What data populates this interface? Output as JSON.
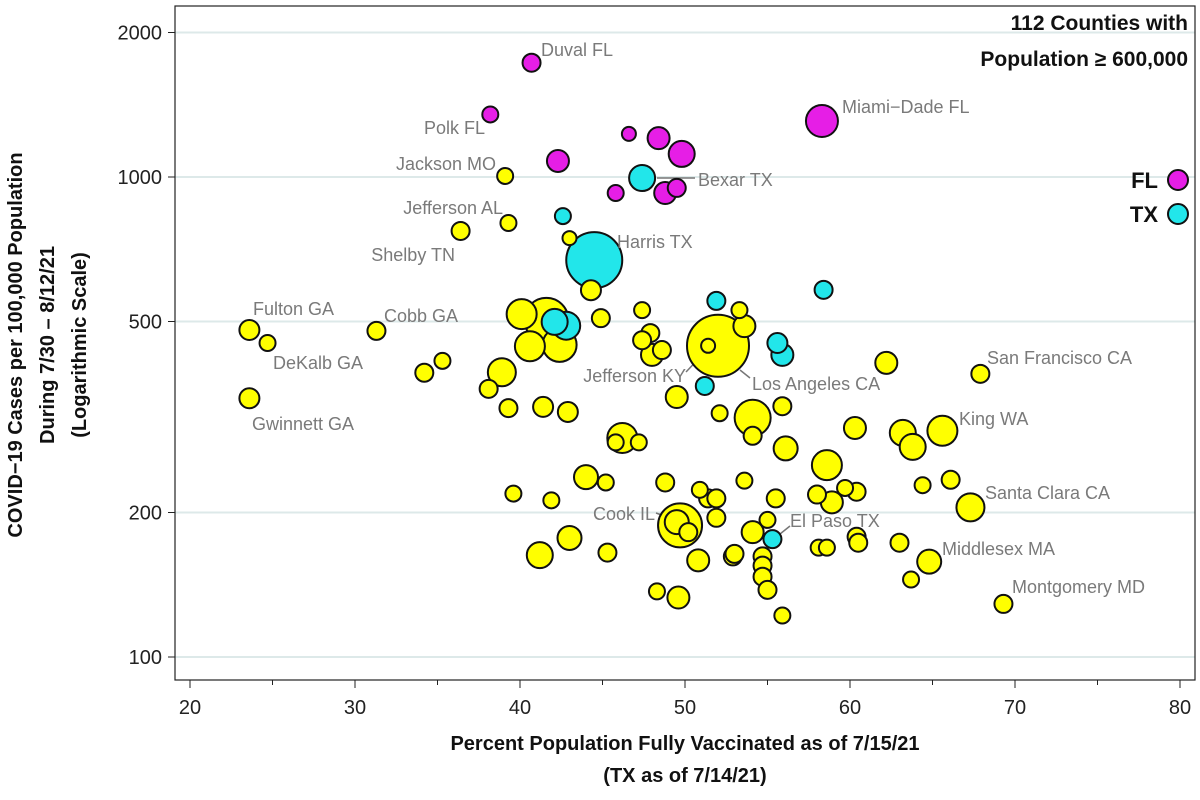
{
  "chart_data": {
    "type": "scatter",
    "title": [
      "112 Counties with",
      "Population ≥ 600,000"
    ],
    "xlabel": [
      "Percent Population Fully Vaccinated as of 7/15/21",
      "(TX as of 7/14/21)"
    ],
    "ylabel": [
      "COVID−19 Cases per 100,000 Population",
      "During 7/30 – 8/12/21",
      "(Logarithmic Scale)"
    ],
    "xlim": [
      20,
      80
    ],
    "ylim": [
      100,
      2000
    ],
    "yscale": "log",
    "xticks": [
      "20",
      "30",
      "40",
      "50",
      "60",
      "70",
      "80"
    ],
    "yticks": [
      "100",
      "200",
      "500",
      "1000",
      "2000"
    ],
    "grid": "horizontal",
    "legend": {
      "placement": "right",
      "entries": [
        {
          "name": "FL",
          "color": "#e61ee6"
        },
        {
          "name": "TX",
          "color": "#22e6ea"
        }
      ]
    },
    "colors": {
      "FL": "#e61ee6",
      "TX": "#22e6ea",
      "other": "#ffff00"
    },
    "point_fields": [
      "pct_vaccinated",
      "cases_per_100k",
      "relative_size",
      "group",
      "label"
    ],
    "points": [
      [
        40.7,
        1730,
        9,
        "FL",
        "Duval FL"
      ],
      [
        38.2,
        1350,
        8,
        "FL",
        "Polk FL"
      ],
      [
        46.6,
        1230,
        7,
        "FL",
        ""
      ],
      [
        48.4,
        1205,
        11,
        "FL",
        ""
      ],
      [
        49.8,
        1117,
        13,
        "FL",
        ""
      ],
      [
        42.3,
        1080,
        11,
        "FL",
        ""
      ],
      [
        58.3,
        1308,
        16,
        "FL",
        "Miami−Dade FL"
      ],
      [
        45.8,
        926,
        8,
        "FL",
        ""
      ],
      [
        48.8,
        926,
        11,
        "FL",
        ""
      ],
      [
        49.5,
        949,
        9,
        "FL",
        ""
      ],
      [
        47.4,
        995,
        13,
        "TX",
        "Bexar TX"
      ],
      [
        42.6,
        829,
        8,
        "TX",
        ""
      ],
      [
        44.5,
        671,
        28,
        "TX",
        "Harris TX"
      ],
      [
        51.9,
        552,
        9,
        "TX",
        ""
      ],
      [
        58.4,
        582,
        9,
        "TX",
        ""
      ],
      [
        55.6,
        451,
        10,
        "TX",
        ""
      ],
      [
        55.9,
        426,
        11,
        "TX",
        ""
      ],
      [
        51.2,
        367,
        9,
        "TX",
        ""
      ],
      [
        55.3,
        176,
        9,
        "TX",
        "El Paso TX"
      ],
      [
        42.1,
        499,
        13,
        "TX",
        ""
      ],
      [
        42.8,
        490,
        14,
        "TX",
        ""
      ],
      [
        23.6,
        480,
        10,
        "other",
        "Fulton GA"
      ],
      [
        24.7,
        451,
        8,
        "other",
        ""
      ],
      [
        23.6,
        346,
        10,
        "other",
        "Gwinnett GA"
      ],
      [
        31.3,
        478,
        9,
        "other",
        "Cobb GA"
      ],
      [
        34.2,
        391,
        9,
        "other",
        ""
      ],
      [
        35.3,
        414,
        8,
        "other",
        "DeKalb GA"
      ],
      [
        39.1,
        1005,
        8,
        "other",
        "Jackson MO"
      ],
      [
        39.3,
        802,
        8,
        "other",
        "Jefferson AL"
      ],
      [
        36.4,
        772,
        9,
        "other",
        "Shelby TN"
      ],
      [
        43.0,
        746,
        7,
        "other",
        ""
      ],
      [
        44.3,
        581,
        10,
        "other",
        ""
      ],
      [
        40.1,
        518,
        15,
        "other",
        ""
      ],
      [
        41.6,
        504,
        22,
        "other",
        ""
      ],
      [
        42.4,
        447,
        17,
        "other",
        ""
      ],
      [
        40.6,
        444,
        15,
        "other",
        ""
      ],
      [
        44.9,
        508,
        9,
        "other",
        ""
      ],
      [
        38.9,
        392,
        14,
        "other",
        ""
      ],
      [
        38.1,
        362,
        9,
        "other",
        ""
      ],
      [
        39.3,
        330,
        9,
        "other",
        ""
      ],
      [
        41.4,
        332,
        10,
        "other",
        ""
      ],
      [
        42.9,
        324,
        10,
        "other",
        ""
      ],
      [
        47.4,
        528,
        8,
        "other",
        ""
      ],
      [
        47.9,
        473,
        9,
        "other",
        ""
      ],
      [
        47.4,
        457,
        9,
        "other",
        ""
      ],
      [
        48.6,
        436,
        9,
        "other",
        ""
      ],
      [
        48.0,
        426,
        11,
        "other",
        ""
      ],
      [
        52.0,
        445,
        31,
        "other",
        "Los Angeles CA"
      ],
      [
        51.4,
        445,
        7,
        "other",
        "Jefferson KY"
      ],
      [
        53.3,
        528,
        8,
        "other",
        ""
      ],
      [
        53.6,
        489,
        11,
        "other",
        ""
      ],
      [
        49.5,
        348,
        11,
        "other",
        ""
      ],
      [
        52.1,
        322,
        8,
        "other",
        ""
      ],
      [
        54.1,
        315,
        18,
        "other",
        ""
      ],
      [
        54.1,
        289,
        9,
        "other",
        ""
      ],
      [
        55.9,
        333,
        9,
        "other",
        ""
      ],
      [
        46.2,
        286,
        15,
        "other",
        ""
      ],
      [
        45.8,
        280,
        8,
        "other",
        ""
      ],
      [
        47.2,
        280,
        8,
        "other",
        ""
      ],
      [
        44.0,
        237,
        12,
        "other",
        ""
      ],
      [
        45.2,
        231,
        8,
        "other",
        ""
      ],
      [
        48.8,
        231,
        9,
        "other",
        ""
      ],
      [
        39.6,
        219,
        8,
        "other",
        ""
      ],
      [
        41.9,
        212,
        8,
        "other",
        ""
      ],
      [
        50.9,
        223,
        8,
        "other",
        ""
      ],
      [
        51.4,
        214,
        9,
        "other",
        ""
      ],
      [
        51.9,
        214,
        9,
        "other",
        ""
      ],
      [
        51.9,
        195,
        9,
        "other",
        ""
      ],
      [
        49.7,
        188,
        22,
        "other",
        "Cook IL"
      ],
      [
        49.5,
        191,
        12,
        "other",
        ""
      ],
      [
        50.2,
        182,
        9,
        "other",
        ""
      ],
      [
        53.6,
        233,
        8,
        "other",
        ""
      ],
      [
        55.5,
        214,
        9,
        "other",
        ""
      ],
      [
        56.1,
        272,
        12,
        "other",
        ""
      ],
      [
        58.6,
        251,
        15,
        "other",
        ""
      ],
      [
        58.0,
        218,
        9,
        "other",
        ""
      ],
      [
        58.9,
        210,
        11,
        "other",
        ""
      ],
      [
        59.7,
        225,
        8,
        "other",
        ""
      ],
      [
        60.4,
        221,
        9,
        "other",
        ""
      ],
      [
        60.3,
        300,
        11,
        "other",
        ""
      ],
      [
        62.2,
        410,
        11,
        "other",
        ""
      ],
      [
        63.2,
        293,
        13,
        "other",
        ""
      ],
      [
        63.8,
        274,
        13,
        "other",
        ""
      ],
      [
        65.6,
        296,
        15,
        "other",
        "King WA"
      ],
      [
        66.1,
        234,
        9,
        "other",
        ""
      ],
      [
        64.4,
        228,
        8,
        "other",
        ""
      ],
      [
        67.3,
        205,
        14,
        "other",
        "Santa Clara CA"
      ],
      [
        67.9,
        389,
        9,
        "other",
        "San Francisco CA"
      ],
      [
        64.8,
        158,
        12,
        "other",
        "Middlesex MA"
      ],
      [
        63.0,
        173,
        9,
        "other",
        ""
      ],
      [
        63.7,
        145,
        8,
        "other",
        ""
      ],
      [
        69.3,
        129,
        9,
        "other",
        "Montgomery MD"
      ],
      [
        60.4,
        178,
        9,
        "other",
        ""
      ],
      [
        60.5,
        173,
        9,
        "other",
        ""
      ],
      [
        58.1,
        169,
        8,
        "other",
        ""
      ],
      [
        58.6,
        169,
        8,
        "other",
        ""
      ],
      [
        55.0,
        193,
        8,
        "other",
        ""
      ],
      [
        54.1,
        182,
        11,
        "other",
        ""
      ],
      [
        54.7,
        162,
        9,
        "other",
        ""
      ],
      [
        54.7,
        155,
        9,
        "other",
        ""
      ],
      [
        54.7,
        147,
        9,
        "other",
        ""
      ],
      [
        55.0,
        138,
        9,
        "other",
        ""
      ],
      [
        55.9,
        122,
        8,
        "other",
        ""
      ],
      [
        52.9,
        162,
        9,
        "other",
        ""
      ],
      [
        53.0,
        164,
        9,
        "other",
        ""
      ],
      [
        50.8,
        159,
        11,
        "other",
        ""
      ],
      [
        45.3,
        165,
        9,
        "other",
        ""
      ],
      [
        48.3,
        137,
        8,
        "other",
        ""
      ],
      [
        49.6,
        133,
        11,
        "other",
        ""
      ],
      [
        43.0,
        177,
        12,
        "other",
        ""
      ],
      [
        41.2,
        163,
        13,
        "other",
        ""
      ]
    ]
  }
}
